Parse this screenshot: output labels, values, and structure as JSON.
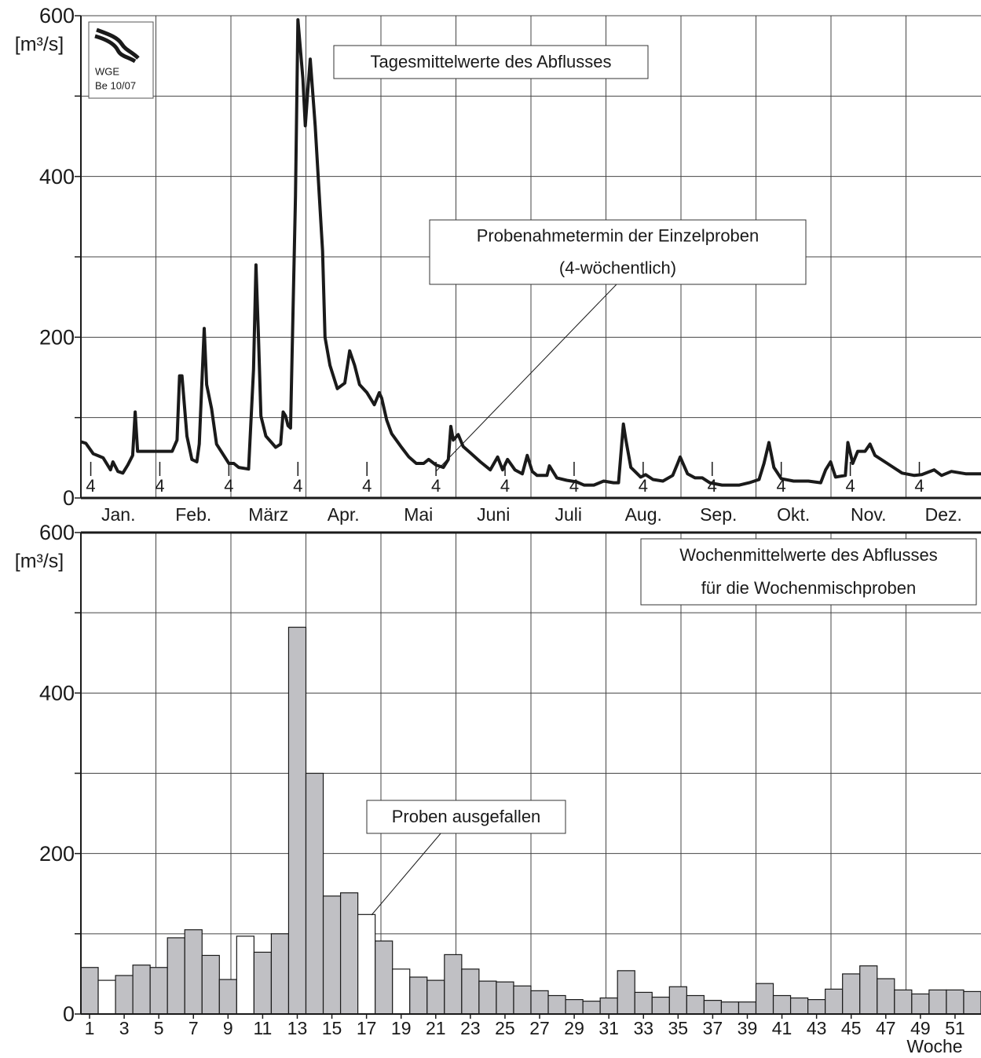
{
  "chart_data": [
    {
      "type": "line",
      "title": "Tagesmittelwerte des Abflusses",
      "ylabel": "[m³/s]",
      "logo": [
        "WGE",
        "Be 10/07"
      ],
      "annotation": [
        "Probenahmetermin der Einzelproben",
        "(4-wöchentlich)"
      ],
      "months": [
        "Jan.",
        "Feb.",
        "März",
        "Apr.",
        "Mai",
        "Juni",
        "Juli",
        "Aug.",
        "Sep.",
        "Okt.",
        "Nov.",
        "Dez."
      ],
      "sampling": {
        "days": [
          4,
          32,
          60,
          88,
          116,
          144,
          172,
          200,
          228,
          256,
          284,
          312,
          340
        ],
        "labels": [
          "4",
          "4",
          "4",
          "4",
          "4",
          "4",
          "4",
          "4",
          "4",
          "4",
          "4",
          "4",
          "4"
        ]
      },
      "xlim": [
        0,
        365
      ],
      "ylim": [
        0,
        600
      ],
      "yticks": [
        0,
        200,
        400,
        600
      ],
      "yminorticks": [
        100,
        300,
        500
      ],
      "color": "#1a1a1a",
      "x": [
        0,
        2,
        5,
        9,
        12,
        13,
        15,
        17,
        19,
        21,
        22,
        23,
        37,
        39,
        40,
        41,
        43,
        45,
        47,
        48,
        50,
        51,
        53,
        55,
        60,
        62,
        64,
        68,
        70,
        71,
        72,
        73,
        75,
        79,
        81,
        82,
        83,
        84,
        85,
        87,
        88,
        90,
        91,
        92,
        93,
        95,
        98,
        99,
        101,
        104,
        107,
        109,
        111,
        113,
        116,
        119,
        121,
        122,
        124,
        126,
        130,
        133,
        136,
        139,
        141,
        144,
        147,
        149,
        150,
        151,
        153,
        155,
        158,
        162,
        166,
        169,
        171,
        173,
        176,
        179,
        181,
        183,
        185,
        189,
        190,
        193,
        197,
        201,
        204,
        208,
        212,
        216,
        218,
        220,
        221,
        223,
        227,
        229,
        232,
        236,
        240,
        242,
        243,
        246,
        249,
        252,
        255,
        260,
        267,
        271,
        275,
        277,
        279,
        281,
        284,
        289,
        295,
        300,
        302,
        304,
        306,
        310,
        311,
        313,
        315,
        318,
        320,
        322,
        327,
        333,
        338,
        341,
        346,
        349,
        353,
        359,
        365
      ],
      "values": [
        70,
        68,
        55,
        50,
        35,
        45,
        33,
        31,
        41,
        53,
        107,
        58,
        58,
        72,
        152,
        152,
        77,
        48,
        45,
        67,
        211,
        141,
        111,
        67,
        43,
        43,
        38,
        36,
        160,
        290,
        200,
        102,
        77,
        63,
        67,
        107,
        102,
        90,
        87,
        375,
        595,
        522,
        463,
        507,
        546,
        463,
        307,
        200,
        165,
        136,
        143,
        183,
        165,
        141,
        131,
        116,
        131,
        124,
        97,
        80,
        63,
        51,
        43,
        43,
        48,
        41,
        38,
        48,
        89,
        72,
        79,
        64,
        56,
        45,
        35,
        51,
        35,
        48,
        35,
        30,
        53,
        33,
        28,
        28,
        40,
        25,
        22,
        20,
        16,
        16,
        21,
        19,
        19,
        92,
        72,
        38,
        26,
        29,
        23,
        21,
        28,
        43,
        51,
        30,
        25,
        25,
        19,
        16,
        16,
        19,
        23,
        43,
        69,
        38,
        24,
        21,
        21,
        19,
        35,
        45,
        26,
        28,
        69,
        43,
        58,
        58,
        67,
        53,
        43,
        31,
        28,
        29,
        35,
        28,
        33,
        30,
        30
      ]
    },
    {
      "type": "bar",
      "title": [
        "Wochenmittelwerte des Abflusses",
        "für die Wochenmischproben"
      ],
      "annotation": "Proben ausgefallen",
      "ylabel": "[m³/s]",
      "xlabel": "Woche",
      "ylim": [
        0,
        600
      ],
      "yticks": [
        0,
        200,
        400,
        600
      ],
      "yminorticks": [
        100,
        300,
        500
      ],
      "categories": [
        1,
        null,
        3,
        null,
        5,
        null,
        7,
        null,
        9,
        null,
        11,
        null,
        13,
        null,
        15,
        null,
        17,
        null,
        19,
        null,
        21,
        null,
        23,
        null,
        25,
        null,
        27,
        null,
        29,
        null,
        31,
        null,
        33,
        null,
        35,
        null,
        37,
        null,
        39,
        null,
        41,
        null,
        43,
        null,
        45,
        null,
        47,
        null,
        49,
        null,
        51,
        null
      ],
      "values": [
        58,
        42,
        48,
        61,
        58,
        95,
        105,
        73,
        43,
        97,
        77,
        100,
        482,
        300,
        147,
        151,
        124,
        91,
        56,
        46,
        42,
        74,
        56,
        41,
        40,
        35,
        29,
        23,
        18,
        16,
        20,
        54,
        27,
        21,
        34,
        23,
        17,
        15,
        15,
        38,
        23,
        20,
        18,
        31,
        50,
        60,
        44,
        30,
        25,
        30,
        30,
        28
      ],
      "colors": [
        "#c0c0c4",
        "#ffffff",
        "#c0c0c4",
        "#c0c0c4",
        "#c0c0c4",
        "#c0c0c4",
        "#c0c0c4",
        "#c0c0c4",
        "#c0c0c4",
        "#ffffff",
        "#c0c0c4",
        "#c0c0c4",
        "#c0c0c4",
        "#c0c0c4",
        "#c0c0c4",
        "#c0c0c4",
        "#ffffff",
        "#c0c0c4",
        "#ffffff",
        "#c0c0c4",
        "#c0c0c4",
        "#c0c0c4",
        "#c0c0c4",
        "#c0c0c4",
        "#c0c0c4",
        "#c0c0c4",
        "#c0c0c4",
        "#c0c0c4",
        "#c0c0c4",
        "#c0c0c4",
        "#c0c0c4",
        "#c0c0c4",
        "#c0c0c4",
        "#c0c0c4",
        "#c0c0c4",
        "#c0c0c4",
        "#c0c0c4",
        "#c0c0c4",
        "#c0c0c4",
        "#c0c0c4",
        "#c0c0c4",
        "#c0c0c4",
        "#c0c0c4",
        "#c0c0c4",
        "#c0c0c4",
        "#c0c0c4",
        "#c0c0c4",
        "#c0c0c4",
        "#c0c0c4",
        "#c0c0c4",
        "#c0c0c4",
        "#c0c0c4"
      ]
    }
  ]
}
